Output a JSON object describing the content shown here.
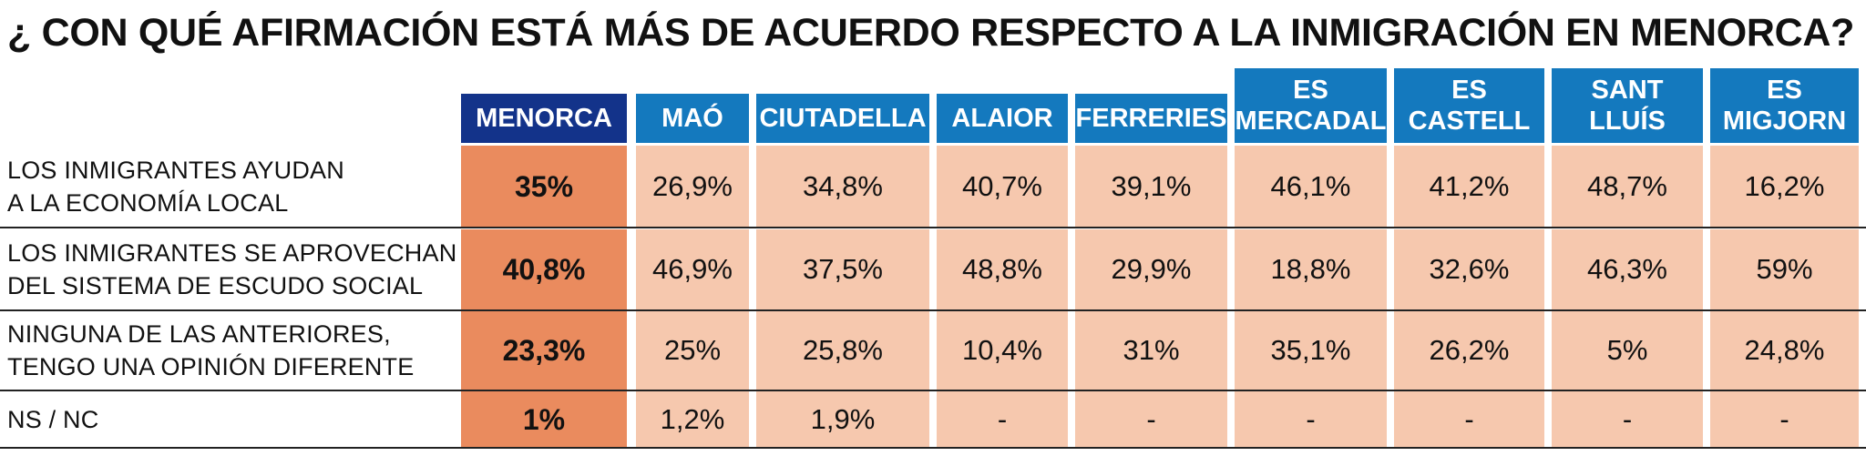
{
  "title": "¿ CON QUÉ AFIRMACIÓN ESTÁ MÁS DE ACUERDO RESPECTO A LA INMIGRACIÓN EN MENORCA?",
  "columns": [
    "MENORCA",
    "MAÓ",
    "CIUTADELLA",
    "ALAIOR",
    "FERRERIES",
    "ES\nMERCADAL",
    "ES\nCASTELL",
    "SANT\nLLUÍS",
    "ES\nMIGJORN"
  ],
  "rows": [
    {
      "label": "LOS INMIGRANTES AYUDAN\nA LA ECONOMÍA LOCAL",
      "values": [
        "35%",
        "26,9%",
        "34,8%",
        "40,7%",
        "39,1%",
        "46,1%",
        "41,2%",
        "48,7%",
        "16,2%"
      ]
    },
    {
      "label": "LOS INMIGRANTES SE APROVECHAN\nDEL SISTEMA DE ESCUDO SOCIAL",
      "values": [
        "40,8%",
        "46,9%",
        "37,5%",
        "48,8%",
        "29,9%",
        "18,8%",
        "32,6%",
        "46,3%",
        "59%"
      ]
    },
    {
      "label": "NINGUNA DE LAS ANTERIORES,\nTENGO UNA OPINIÓN DIFERENTE",
      "values": [
        "23,3%",
        "25%",
        "25,8%",
        "10,4%",
        "31%",
        "35,1%",
        "26,2%",
        "5%",
        "24,8%"
      ]
    },
    {
      "label": "NS / NC",
      "values": [
        "1%",
        "1,2%",
        "1,9%",
        "-",
        "-",
        "-",
        "-",
        "-",
        "-"
      ]
    }
  ],
  "colors": {
    "menorca_header": "#13338a",
    "location_header": "#1479be",
    "menorca_cell": "#ea8b5e",
    "location_cell": "#f6c8ae"
  }
}
